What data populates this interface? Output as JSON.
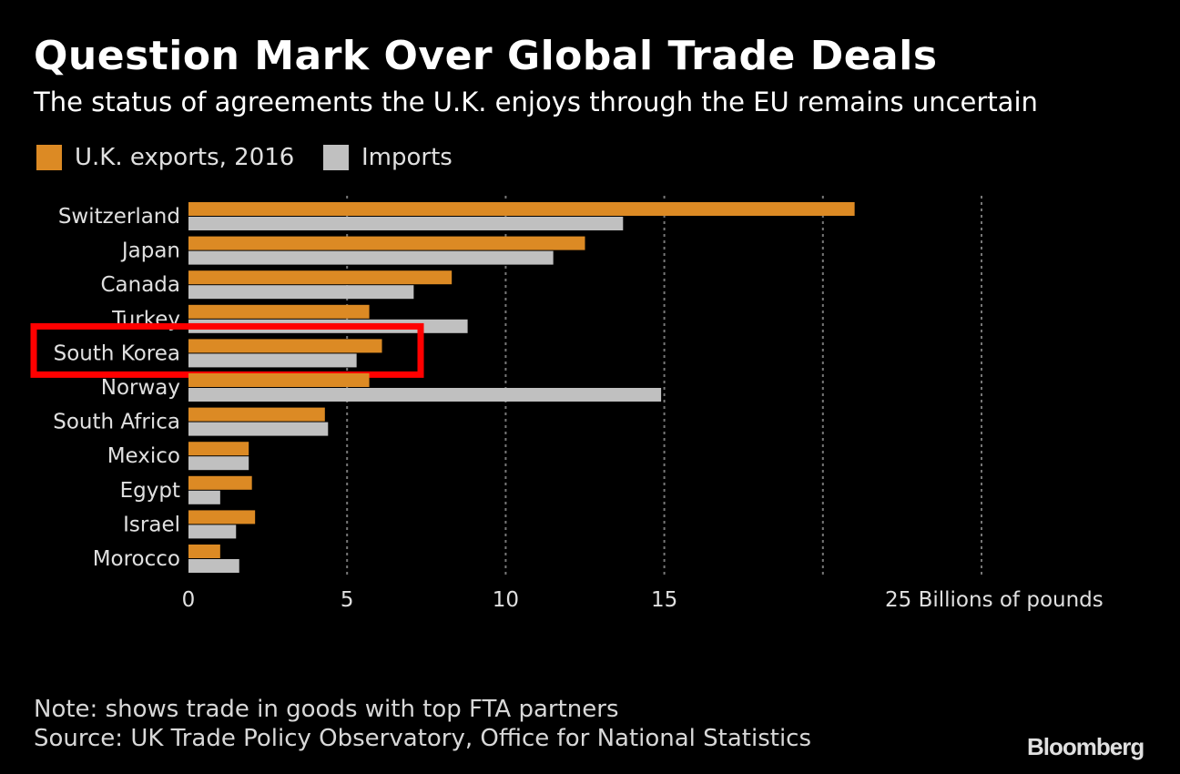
{
  "colors": {
    "exports": "#dc8a24",
    "imports": "#c0c0c0",
    "highlight": "#ff0000",
    "background": "#000000"
  },
  "chart_data": {
    "type": "bar",
    "orientation": "horizontal",
    "title": "Question Mark Over Global Trade Deals",
    "subtitle": "The status of agreements the U.K. enjoys through the EU remains uncertain",
    "categories": [
      "Switzerland",
      "Japan",
      "Canada",
      "Turkey",
      "South Korea",
      "Norway",
      "South Africa",
      "Mexico",
      "Egypt",
      "Israel",
      "Morocco"
    ],
    "series": [
      {
        "name": "U.K. exports, 2016",
        "values": [
          21.0,
          12.5,
          8.3,
          5.7,
          6.1,
          5.7,
          4.3,
          1.9,
          2.0,
          2.1,
          1.0
        ]
      },
      {
        "name": "Imports",
        "values": [
          13.7,
          11.5,
          7.1,
          8.8,
          5.3,
          14.9,
          4.4,
          1.9,
          1.0,
          1.5,
          1.6
        ]
      }
    ],
    "xlim": [
      0,
      25
    ],
    "xticks": [
      0,
      5,
      10,
      15,
      20,
      25
    ],
    "xtick_labels": [
      "0",
      "5",
      "10",
      "15",
      "",
      "25 Billions of pounds"
    ],
    "grid": "vertical dotted",
    "legend": "top-left",
    "highlighted_category": "South Korea",
    "note": "Note: shows trade in goods with top FTA partners",
    "source": "Source: UK Trade Policy Observatory, Office for National Statistics"
  },
  "brand": "Bloomberg"
}
